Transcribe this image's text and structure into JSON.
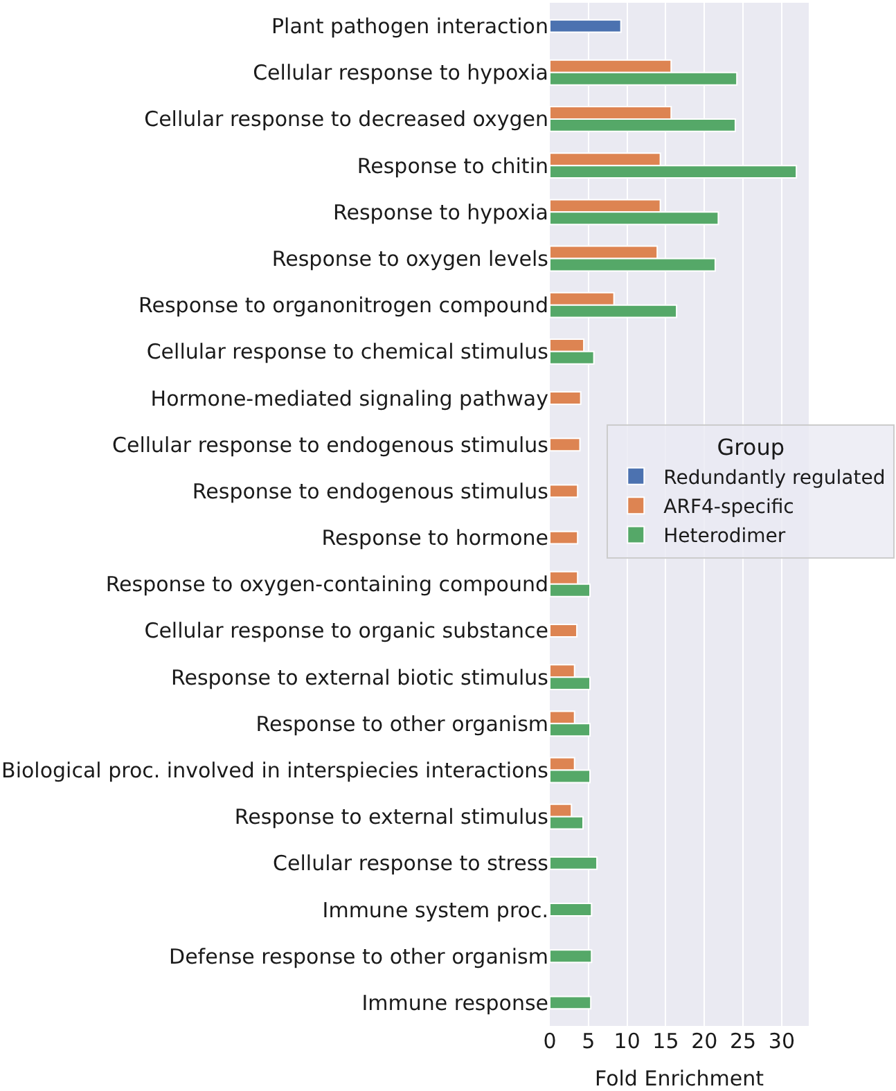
{
  "chart_data": {
    "type": "bar",
    "orientation": "horizontal",
    "xlabel": "Fold Enrichment",
    "legend_title": "Group",
    "legend": "right",
    "grid": "x",
    "categories": [
      "Plant pathogen interaction",
      "Cellular response to hypoxia",
      "Cellular response to decreased oxygen",
      "Response to chitin",
      "Response to hypoxia",
      "Response to oxygen levels",
      "Response to organonitrogen compound",
      "Cellular response to chemical stimulus",
      "Hormone-mediated signaling pathway",
      "Cellular response to endogenous stimulus",
      "Response to endogenous stimulus",
      "Response to hormone",
      "Response to oxygen-containing compound",
      "Cellular response to organic substance",
      "Response to external biotic stimulus",
      "Response to other organism",
      "Biological proc. involved in interspiecies interactions",
      "Response to external stimulus",
      "Cellular response to stress",
      "Immune system proc.",
      "Defense response to other organism",
      "Immune response"
    ],
    "xlim": [
      0,
      33.5
    ],
    "xticks": [
      0,
      5,
      10,
      15,
      20,
      25,
      30
    ],
    "series": [
      {
        "name": "Redundantly regulated",
        "color": "#4c72b0",
        "values": [
          9.2,
          null,
          null,
          null,
          null,
          null,
          null,
          null,
          null,
          null,
          null,
          null,
          null,
          null,
          null,
          null,
          null,
          null,
          null,
          null,
          null,
          null
        ]
      },
      {
        "name": "ARF4-specific",
        "color": "#dd8452",
        "values": [
          null,
          15.7,
          15.7,
          14.3,
          14.3,
          13.9,
          8.3,
          4.4,
          4.0,
          3.9,
          3.6,
          3.6,
          3.6,
          3.5,
          3.2,
          3.2,
          3.2,
          2.8,
          null,
          null,
          null,
          null
        ]
      },
      {
        "name": "Heterodimer",
        "color": "#55a868",
        "values": [
          null,
          24.2,
          24.0,
          31.9,
          21.8,
          21.4,
          16.4,
          5.7,
          null,
          null,
          null,
          null,
          5.2,
          null,
          5.2,
          5.2,
          5.2,
          4.3,
          6.1,
          5.4,
          5.4,
          5.3
        ]
      }
    ]
  }
}
